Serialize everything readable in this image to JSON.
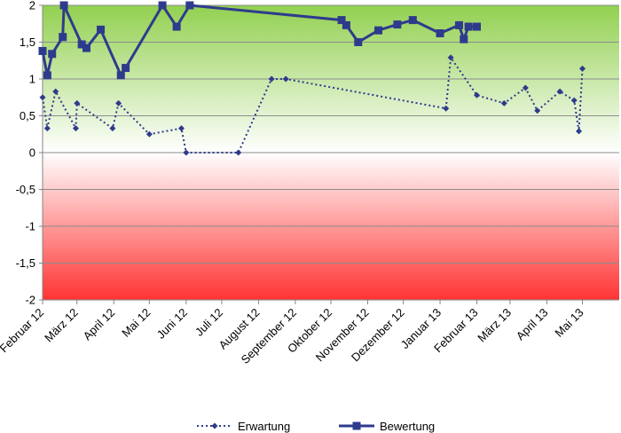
{
  "chart_data": {
    "type": "line",
    "title": "",
    "xlabel": "",
    "ylabel": "",
    "ylim": [
      -2,
      2
    ],
    "yticks": [
      "2",
      "1,5",
      "1",
      "0,5",
      "0",
      "-0,5",
      "-1",
      "-1,5",
      "-2"
    ],
    "xlim": [
      "2012-02-01",
      "2013-06-01"
    ],
    "xticks": [
      {
        "date": "2012-02-01",
        "label": "Februar 12"
      },
      {
        "date": "2012-03-01",
        "label": "März 12"
      },
      {
        "date": "2012-04-01",
        "label": "April 12"
      },
      {
        "date": "2012-05-01",
        "label": "Mai 12"
      },
      {
        "date": "2012-06-01",
        "label": "Juni 12"
      },
      {
        "date": "2012-07-01",
        "label": "Juli 12"
      },
      {
        "date": "2012-08-01",
        "label": "August 12"
      },
      {
        "date": "2012-09-01",
        "label": "September 12"
      },
      {
        "date": "2012-10-01",
        "label": "Oktober 12"
      },
      {
        "date": "2012-11-01",
        "label": "November 12"
      },
      {
        "date": "2012-12-01",
        "label": "Dezember 12"
      },
      {
        "date": "2013-01-01",
        "label": "Januar 13"
      },
      {
        "date": "2013-02-01",
        "label": "Februar 13"
      },
      {
        "date": "2013-03-01",
        "label": "März 13"
      },
      {
        "date": "2013-04-01",
        "label": "April 13"
      },
      {
        "date": "2013-05-01",
        "label": "Mai 13"
      }
    ],
    "background": {
      "top_color": "#92d050",
      "bottom_color": "#ff3333",
      "zero_color": "#ffffff"
    },
    "legend_position": "bottom",
    "series": [
      {
        "name": "Erwartung",
        "color": "#2e3b8c",
        "line_style": "dotted",
        "marker": "diamond",
        "points": [
          {
            "x": "2012-02-01",
            "y": 0.75
          },
          {
            "x": "2012-02-05",
            "y": 0.33
          },
          {
            "x": "2012-02-12",
            "y": 0.83
          },
          {
            "x": "2012-02-29",
            "y": 0.33
          },
          {
            "x": "2012-03-01",
            "y": 0.67
          },
          {
            "x": "2012-03-31",
            "y": 0.33
          },
          {
            "x": "2012-04-05",
            "y": 0.67
          },
          {
            "x": "2012-05-01",
            "y": 0.25
          },
          {
            "x": "2012-05-28",
            "y": 0.33
          },
          {
            "x": "2012-06-01",
            "y": 0.0
          },
          {
            "x": "2012-07-15",
            "y": 0.0
          },
          {
            "x": "2012-08-12",
            "y": 1.0
          },
          {
            "x": "2012-08-24",
            "y": 1.0
          },
          {
            "x": "2013-01-06",
            "y": 0.6
          },
          {
            "x": "2013-01-10",
            "y": 1.29
          },
          {
            "x": "2013-02-01",
            "y": 0.78
          },
          {
            "x": "2013-02-24",
            "y": 0.67
          },
          {
            "x": "2013-03-14",
            "y": 0.88
          },
          {
            "x": "2013-03-24",
            "y": 0.57
          },
          {
            "x": "2013-04-12",
            "y": 0.83
          },
          {
            "x": "2013-04-24",
            "y": 0.71
          },
          {
            "x": "2013-04-28",
            "y": 0.29
          },
          {
            "x": "2013-05-01",
            "y": 1.14
          }
        ]
      },
      {
        "name": "Bewertung",
        "color": "#2e3b8c",
        "line_style": "solid",
        "marker": "square",
        "points": [
          {
            "x": "2012-02-01",
            "y": 1.38
          },
          {
            "x": "2012-02-05",
            "y": 1.05
          },
          {
            "x": "2012-02-09",
            "y": 1.34
          },
          {
            "x": "2012-02-18",
            "y": 1.57
          },
          {
            "x": "2012-02-19",
            "y": 2.0
          },
          {
            "x": "2012-03-05",
            "y": 1.47
          },
          {
            "x": "2012-03-09",
            "y": 1.42
          },
          {
            "x": "2012-03-21",
            "y": 1.67
          },
          {
            "x": "2012-04-07",
            "y": 1.05
          },
          {
            "x": "2012-04-11",
            "y": 1.15
          },
          {
            "x": "2012-05-12",
            "y": 2.0
          },
          {
            "x": "2012-05-24",
            "y": 1.71
          },
          {
            "x": "2012-06-04",
            "y": 2.0
          },
          {
            "x": "2012-10-10",
            "y": 1.8
          },
          {
            "x": "2012-10-14",
            "y": 1.73
          },
          {
            "x": "2012-10-24",
            "y": 1.5
          },
          {
            "x": "2012-11-10",
            "y": 1.66
          },
          {
            "x": "2012-11-26",
            "y": 1.74
          },
          {
            "x": "2012-12-09",
            "y": 1.8
          },
          {
            "x": "2013-01-01",
            "y": 1.62
          },
          {
            "x": "2013-01-17",
            "y": 1.73
          },
          {
            "x": "2013-01-21",
            "y": 1.54
          },
          {
            "x": "2013-01-25",
            "y": 1.71
          },
          {
            "x": "2013-02-01",
            "y": 1.71
          }
        ]
      }
    ]
  }
}
